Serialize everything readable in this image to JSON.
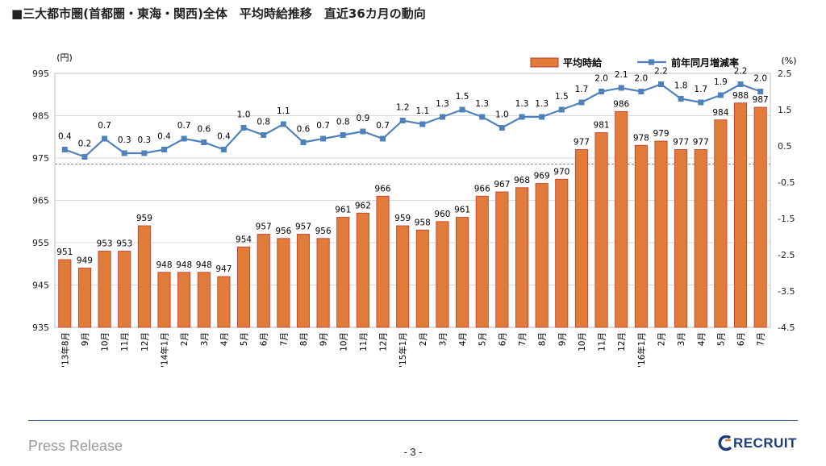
{
  "title": "■三大都市圏(首都圏・東海・関西)全体　平均時給推移　直近36カ月の動向",
  "footer": {
    "press": "Press Release",
    "page": "- 3 -",
    "brand": "RECRUIT"
  },
  "colors": {
    "bar": "#e07b39",
    "bar_edge": "#c0392b",
    "line": "#4f81bd",
    "grid": "#d9d9d9",
    "zero": "#8a8a8a",
    "footer_line": "#2f64a6",
    "brand": "#1d3c7a"
  },
  "chart_data": {
    "type": "bar",
    "legend_position": "top-right",
    "ylabel_left": "(円)",
    "ylabel_right": "(%)",
    "ylim": [
      935,
      995
    ],
    "yticks": [
      935,
      945,
      955,
      965,
      975,
      985,
      995
    ],
    "y2lim": [
      -4.5,
      2.5
    ],
    "y2ticks": [
      "-4.5",
      "-3.5",
      "-2.5",
      "-1.5",
      "-0.5",
      "0.5",
      "1.5",
      "2.5"
    ],
    "grid": true,
    "categories": [
      "'13年8月",
      "9月",
      "10月",
      "11月",
      "12月",
      "'14年1月",
      "2月",
      "3月",
      "4月",
      "5月",
      "6月",
      "7月",
      "8月",
      "9月",
      "10月",
      "11月",
      "12月",
      "'15年1月",
      "2月",
      "3月",
      "4月",
      "5月",
      "6月",
      "7月",
      "8月",
      "9月",
      "10月",
      "11月",
      "12月",
      "'16年1月",
      "2月",
      "3月",
      "4月",
      "5月",
      "6月",
      "7月"
    ],
    "series": [
      {
        "name": "平均時給",
        "type": "bar",
        "axis": "left",
        "values": [
          951,
          949,
          953,
          953,
          959,
          948,
          948,
          948,
          947,
          954,
          957,
          956,
          957,
          956,
          961,
          962,
          966,
          959,
          958,
          960,
          961,
          966,
          967,
          968,
          969,
          970,
          977,
          981,
          986,
          978,
          979,
          977,
          977,
          984,
          988,
          987
        ]
      },
      {
        "name": "前年同月増減率",
        "type": "line",
        "axis": "right",
        "values": [
          "0.4",
          "0.2",
          "0.7",
          "0.3",
          "0.3",
          "0.4",
          "0.7",
          "0.6",
          "0.4",
          "1.0",
          "0.8",
          "1.1",
          "0.6",
          "0.7",
          "0.8",
          "0.9",
          "0.7",
          "1.2",
          "1.1",
          "1.3",
          "1.5",
          "1.3",
          "1.0",
          "1.3",
          "1.3",
          "1.5",
          "1.7",
          "2.0",
          "2.1",
          "2.0",
          "2.2",
          "1.8",
          "1.7",
          "1.9",
          "2.2",
          "2.0"
        ]
      }
    ]
  }
}
